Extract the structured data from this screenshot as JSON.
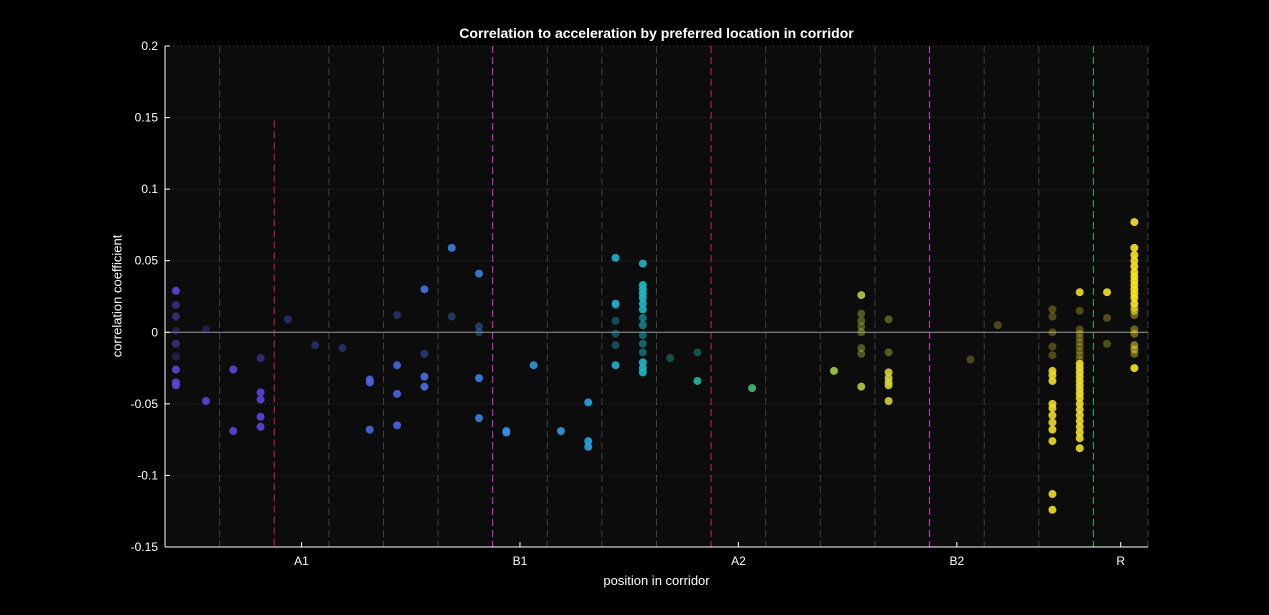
{
  "chart_data": {
    "type": "scatter",
    "title": "Correlation to acceleration by preferred location in corridor",
    "xlabel": "position in corridor",
    "ylabel": "correlation coefficient",
    "ylim": [
      -0.15,
      0.2
    ],
    "yticks": [
      "-0.15",
      "-0.1",
      "-0.05",
      "0",
      "0.05",
      "0.1",
      "0.15",
      "0.2"
    ],
    "ytick_values": [
      -0.15,
      -0.1,
      -0.05,
      0,
      0.05,
      0.1,
      0.15,
      0.2
    ],
    "xlim": [
      0,
      36
    ],
    "xtick_labels": [
      "A1",
      "B1",
      "A2",
      "B2",
      "R"
    ],
    "xtick_positions": [
      5,
      13,
      21,
      29,
      35
    ],
    "grid": "dotted horizontal at y ticks",
    "zero_line": 0,
    "bin_boundaries": [
      2,
      4,
      6,
      8,
      10,
      12,
      14,
      16,
      18,
      20,
      22,
      24,
      26,
      28,
      30,
      32,
      34,
      36
    ],
    "region_boundaries": [
      {
        "x": 4,
        "color": "#c8284a",
        "ymax": 0.148
      },
      {
        "x": 12,
        "color": "#d53ad0"
      },
      {
        "x": 20,
        "color": "#c8284a"
      },
      {
        "x": 28,
        "color": "#d53ad0"
      },
      {
        "x": 34,
        "color": "#2eb834"
      }
    ],
    "colors": {
      "background": "#000000",
      "axes_background": "#0c0c0c",
      "axis": "#ffffff",
      "bin_line": "#404040",
      "grid": "#3a3a3a",
      "zero_line": "#9a9a9a"
    },
    "points": [
      {
        "x": 0.4,
        "y": 0.029,
        "c": "#5a46dc",
        "a": 0.9
      },
      {
        "x": 0.4,
        "y": 0.019,
        "c": "#5a46dc",
        "a": 0.5
      },
      {
        "x": 0.4,
        "y": 0.011,
        "c": "#5a46dc",
        "a": 0.5
      },
      {
        "x": 0.4,
        "y": 0.001,
        "c": "#5a46dc",
        "a": 0.3
      },
      {
        "x": 0.4,
        "y": -0.008,
        "c": "#5a46dc",
        "a": 0.5
      },
      {
        "x": 0.4,
        "y": -0.017,
        "c": "#5a46dc",
        "a": 0.3
      },
      {
        "x": 0.4,
        "y": -0.026,
        "c": "#5a46dc",
        "a": 0.9
      },
      {
        "x": 0.4,
        "y": -0.035,
        "c": "#5a46dc",
        "a": 0.9
      },
      {
        "x": 0.4,
        "y": -0.037,
        "c": "#5a46dc",
        "a": 0.9
      },
      {
        "x": 1.5,
        "y": 0.002,
        "c": "#5a46dc",
        "a": 0.3
      },
      {
        "x": 1.5,
        "y": -0.048,
        "c": "#5a46dc",
        "a": 0.9
      },
      {
        "x": 2.5,
        "y": -0.026,
        "c": "#5a46dc",
        "a": 0.9
      },
      {
        "x": 2.5,
        "y": -0.069,
        "c": "#5a46dc",
        "a": 0.9
      },
      {
        "x": 3.5,
        "y": -0.018,
        "c": "#5a46dc",
        "a": 0.5
      },
      {
        "x": 3.5,
        "y": -0.042,
        "c": "#5a46dc",
        "a": 0.9
      },
      {
        "x": 3.5,
        "y": -0.047,
        "c": "#5a46dc",
        "a": 0.9
      },
      {
        "x": 3.5,
        "y": -0.059,
        "c": "#5a46dc",
        "a": 0.9
      },
      {
        "x": 3.5,
        "y": -0.066,
        "c": "#5a46dc",
        "a": 0.9
      },
      {
        "x": 4.5,
        "y": 0.009,
        "c": "#4a58de",
        "a": 0.4
      },
      {
        "x": 5.5,
        "y": -0.009,
        "c": "#4a58de",
        "a": 0.4
      },
      {
        "x": 6.5,
        "y": -0.011,
        "c": "#4a58de",
        "a": 0.4
      },
      {
        "x": 7.5,
        "y": -0.033,
        "c": "#4a64e0",
        "a": 0.9
      },
      {
        "x": 7.5,
        "y": -0.035,
        "c": "#4a64e0",
        "a": 0.9
      },
      {
        "x": 7.5,
        "y": -0.068,
        "c": "#4a64e0",
        "a": 0.9
      },
      {
        "x": 8.5,
        "y": 0.012,
        "c": "#4a64e0",
        "a": 0.4
      },
      {
        "x": 8.5,
        "y": -0.023,
        "c": "#4a64e0",
        "a": 0.9
      },
      {
        "x": 8.5,
        "y": -0.043,
        "c": "#4a64e0",
        "a": 0.9
      },
      {
        "x": 8.5,
        "y": -0.065,
        "c": "#4a64e0",
        "a": 0.9
      },
      {
        "x": 9.5,
        "y": 0.03,
        "c": "#4a70e2",
        "a": 0.9
      },
      {
        "x": 9.5,
        "y": -0.015,
        "c": "#4a70e2",
        "a": 0.4
      },
      {
        "x": 9.5,
        "y": -0.031,
        "c": "#4a70e2",
        "a": 0.9
      },
      {
        "x": 9.5,
        "y": -0.038,
        "c": "#4a70e2",
        "a": 0.9
      },
      {
        "x": 10.5,
        "y": 0.059,
        "c": "#3a82e2",
        "a": 0.9
      },
      {
        "x": 10.5,
        "y": 0.011,
        "c": "#3a82e2",
        "a": 0.4
      },
      {
        "x": 11.5,
        "y": 0.041,
        "c": "#3a82e2",
        "a": 0.9
      },
      {
        "x": 11.5,
        "y": 0.004,
        "c": "#3a82e2",
        "a": 0.4
      },
      {
        "x": 11.5,
        "y": 0.0,
        "c": "#3a82e2",
        "a": 0.4
      },
      {
        "x": 11.5,
        "y": -0.032,
        "c": "#3a82e2",
        "a": 0.9
      },
      {
        "x": 11.5,
        "y": -0.06,
        "c": "#3a82e2",
        "a": 0.9
      },
      {
        "x": 12.5,
        "y": -0.069,
        "c": "#3a8ee0",
        "a": 0.9
      },
      {
        "x": 12.5,
        "y": -0.07,
        "c": "#3a8ee0",
        "a": 0.9
      },
      {
        "x": 13.5,
        "y": -0.023,
        "c": "#2f9ae0",
        "a": 0.9
      },
      {
        "x": 14.5,
        "y": -0.069,
        "c": "#2f9ae0",
        "a": 0.9
      },
      {
        "x": 15.5,
        "y": -0.049,
        "c": "#2aa4dc",
        "a": 0.9
      },
      {
        "x": 15.5,
        "y": -0.076,
        "c": "#2aa4dc",
        "a": 0.9
      },
      {
        "x": 15.5,
        "y": -0.08,
        "c": "#2aa4dc",
        "a": 0.9
      },
      {
        "x": 16.5,
        "y": 0.052,
        "c": "#22aed2",
        "a": 0.9
      },
      {
        "x": 16.5,
        "y": 0.02,
        "c": "#22aed2",
        "a": 0.9
      },
      {
        "x": 16.5,
        "y": 0.019,
        "c": "#22aed2",
        "a": 0.5
      },
      {
        "x": 16.5,
        "y": 0.008,
        "c": "#22aed2",
        "a": 0.4
      },
      {
        "x": 16.5,
        "y": -0.001,
        "c": "#22aed2",
        "a": 0.4
      },
      {
        "x": 16.5,
        "y": -0.009,
        "c": "#22aed2",
        "a": 0.4
      },
      {
        "x": 16.5,
        "y": -0.023,
        "c": "#22aed2",
        "a": 0.9
      },
      {
        "x": 17.5,
        "y": 0.048,
        "c": "#1eb8c8",
        "a": 0.9
      },
      {
        "x": 17.5,
        "y": 0.033,
        "c": "#1eb8c8",
        "a": 0.9
      },
      {
        "x": 17.5,
        "y": 0.03,
        "c": "#1eb8c8",
        "a": 0.9
      },
      {
        "x": 17.5,
        "y": 0.027,
        "c": "#1eb8c8",
        "a": 0.9
      },
      {
        "x": 17.5,
        "y": 0.024,
        "c": "#1eb8c8",
        "a": 0.9
      },
      {
        "x": 17.5,
        "y": 0.02,
        "c": "#1eb8c8",
        "a": 0.9
      },
      {
        "x": 17.5,
        "y": 0.016,
        "c": "#1eb8c8",
        "a": 0.9
      },
      {
        "x": 17.5,
        "y": 0.01,
        "c": "#1eb8c8",
        "a": 0.6
      },
      {
        "x": 17.5,
        "y": 0.005,
        "c": "#1eb8c8",
        "a": 0.6
      },
      {
        "x": 17.5,
        "y": -0.002,
        "c": "#1eb8c8",
        "a": 0.5
      },
      {
        "x": 17.5,
        "y": -0.008,
        "c": "#1eb8c8",
        "a": 0.5
      },
      {
        "x": 17.5,
        "y": -0.014,
        "c": "#1eb8c8",
        "a": 0.5
      },
      {
        "x": 17.5,
        "y": -0.021,
        "c": "#1eb8c8",
        "a": 0.9
      },
      {
        "x": 17.5,
        "y": -0.025,
        "c": "#1eb8c8",
        "a": 0.9
      },
      {
        "x": 17.5,
        "y": -0.028,
        "c": "#1eb8c8",
        "a": 0.9
      },
      {
        "x": 18.5,
        "y": -0.018,
        "c": "#24b8a8",
        "a": 0.4
      },
      {
        "x": 19.5,
        "y": -0.014,
        "c": "#24b8a0",
        "a": 0.4
      },
      {
        "x": 19.5,
        "y": -0.034,
        "c": "#24b8a0",
        "a": 0.9
      },
      {
        "x": 21.5,
        "y": -0.039,
        "c": "#3cbf7c",
        "a": 0.9
      },
      {
        "x": 24.5,
        "y": -0.027,
        "c": "#a0cc48",
        "a": 0.9
      },
      {
        "x": 25.5,
        "y": 0.026,
        "c": "#b4cc40",
        "a": 0.9
      },
      {
        "x": 25.5,
        "y": 0.013,
        "c": "#b4cc40",
        "a": 0.4
      },
      {
        "x": 25.5,
        "y": 0.008,
        "c": "#b4cc40",
        "a": 0.4
      },
      {
        "x": 25.5,
        "y": 0.004,
        "c": "#b4cc40",
        "a": 0.4
      },
      {
        "x": 25.5,
        "y": 0.0,
        "c": "#b4cc40",
        "a": 0.4
      },
      {
        "x": 25.5,
        "y": -0.011,
        "c": "#b4cc40",
        "a": 0.4
      },
      {
        "x": 25.5,
        "y": -0.015,
        "c": "#b4cc40",
        "a": 0.4
      },
      {
        "x": 25.5,
        "y": -0.038,
        "c": "#b4cc40",
        "a": 0.9
      },
      {
        "x": 26.5,
        "y": 0.009,
        "c": "#c8d23e",
        "a": 0.4
      },
      {
        "x": 26.5,
        "y": -0.014,
        "c": "#c8d23e",
        "a": 0.4
      },
      {
        "x": 26.5,
        "y": -0.028,
        "c": "#d2d23a",
        "a": 0.9
      },
      {
        "x": 26.5,
        "y": -0.032,
        "c": "#d2d23a",
        "a": 0.9
      },
      {
        "x": 26.5,
        "y": -0.035,
        "c": "#d2d23a",
        "a": 0.9
      },
      {
        "x": 26.5,
        "y": -0.037,
        "c": "#d2d23a",
        "a": 0.9
      },
      {
        "x": 26.5,
        "y": -0.048,
        "c": "#d2d23a",
        "a": 0.9
      },
      {
        "x": 29.5,
        "y": -0.019,
        "c": "#e2d23a",
        "a": 0.3
      },
      {
        "x": 30.5,
        "y": 0.005,
        "c": "#e2d23a",
        "a": 0.3
      },
      {
        "x": 32.5,
        "y": 0.016,
        "c": "#f0dc2c",
        "a": 0.3
      },
      {
        "x": 32.5,
        "y": 0.011,
        "c": "#f0dc2c",
        "a": 0.3
      },
      {
        "x": 32.5,
        "y": 0.0,
        "c": "#f0dc2c",
        "a": 0.3
      },
      {
        "x": 32.5,
        "y": -0.01,
        "c": "#f0dc2c",
        "a": 0.3
      },
      {
        "x": 32.5,
        "y": -0.016,
        "c": "#f0dc2c",
        "a": 0.3
      },
      {
        "x": 32.5,
        "y": -0.027,
        "c": "#f0dc2c",
        "a": 0.9
      },
      {
        "x": 32.5,
        "y": -0.03,
        "c": "#f0dc2c",
        "a": 0.9
      },
      {
        "x": 32.5,
        "y": -0.034,
        "c": "#f0dc2c",
        "a": 0.9
      },
      {
        "x": 32.5,
        "y": -0.05,
        "c": "#f0dc2c",
        "a": 0.9
      },
      {
        "x": 32.5,
        "y": -0.053,
        "c": "#f0dc2c",
        "a": 0.9
      },
      {
        "x": 32.5,
        "y": -0.058,
        "c": "#f0dc2c",
        "a": 0.9
      },
      {
        "x": 32.5,
        "y": -0.063,
        "c": "#f0dc2c",
        "a": 0.9
      },
      {
        "x": 32.5,
        "y": -0.068,
        "c": "#f0dc2c",
        "a": 0.9
      },
      {
        "x": 32.5,
        "y": -0.076,
        "c": "#f0dc2c",
        "a": 0.9
      },
      {
        "x": 32.5,
        "y": -0.113,
        "c": "#f0dc2c",
        "a": 0.9
      },
      {
        "x": 32.5,
        "y": -0.124,
        "c": "#f0dc2c",
        "a": 0.9
      },
      {
        "x": 33.5,
        "y": 0.028,
        "c": "#f0dc2c",
        "a": 0.9
      },
      {
        "x": 33.5,
        "y": 0.015,
        "c": "#f0dc2c",
        "a": 0.3
      },
      {
        "x": 33.5,
        "y": 0.002,
        "c": "#f0dc2c",
        "a": 0.3
      },
      {
        "x": 33.5,
        "y": -0.001,
        "c": "#f0dc2c",
        "a": 0.3
      },
      {
        "x": 33.5,
        "y": -0.004,
        "c": "#f0dc2c",
        "a": 0.3
      },
      {
        "x": 33.5,
        "y": -0.007,
        "c": "#f0dc2c",
        "a": 0.3
      },
      {
        "x": 33.5,
        "y": -0.01,
        "c": "#f0dc2c",
        "a": 0.3
      },
      {
        "x": 33.5,
        "y": -0.013,
        "c": "#f0dc2c",
        "a": 0.3
      },
      {
        "x": 33.5,
        "y": -0.016,
        "c": "#f0dc2c",
        "a": 0.3
      },
      {
        "x": 33.5,
        "y": -0.019,
        "c": "#f0dc2c",
        "a": 0.3
      },
      {
        "x": 33.5,
        "y": -0.022,
        "c": "#f0dc2c",
        "a": 0.9
      },
      {
        "x": 33.5,
        "y": -0.025,
        "c": "#f0dc2c",
        "a": 0.9
      },
      {
        "x": 33.5,
        "y": -0.028,
        "c": "#f0dc2c",
        "a": 0.9
      },
      {
        "x": 33.5,
        "y": -0.031,
        "c": "#f0dc2c",
        "a": 0.9
      },
      {
        "x": 33.5,
        "y": -0.034,
        "c": "#f0dc2c",
        "a": 0.9
      },
      {
        "x": 33.5,
        "y": -0.037,
        "c": "#f0dc2c",
        "a": 0.9
      },
      {
        "x": 33.5,
        "y": -0.04,
        "c": "#f0dc2c",
        "a": 0.9
      },
      {
        "x": 33.5,
        "y": -0.043,
        "c": "#f0dc2c",
        "a": 0.9
      },
      {
        "x": 33.5,
        "y": -0.046,
        "c": "#f0dc2c",
        "a": 0.9
      },
      {
        "x": 33.5,
        "y": -0.05,
        "c": "#f0dc2c",
        "a": 0.9
      },
      {
        "x": 33.5,
        "y": -0.054,
        "c": "#f0dc2c",
        "a": 0.9
      },
      {
        "x": 33.5,
        "y": -0.058,
        "c": "#f0dc2c",
        "a": 0.9
      },
      {
        "x": 33.5,
        "y": -0.062,
        "c": "#f0dc2c",
        "a": 0.9
      },
      {
        "x": 33.5,
        "y": -0.066,
        "c": "#f0dc2c",
        "a": 0.9
      },
      {
        "x": 33.5,
        "y": -0.07,
        "c": "#f0dc2c",
        "a": 0.9
      },
      {
        "x": 33.5,
        "y": -0.074,
        "c": "#f0dc2c",
        "a": 0.9
      },
      {
        "x": 33.5,
        "y": -0.081,
        "c": "#f0dc2c",
        "a": 0.9
      },
      {
        "x": 34.5,
        "y": 0.028,
        "c": "#f5e02a",
        "a": 0.9
      },
      {
        "x": 34.5,
        "y": 0.01,
        "c": "#f5e02a",
        "a": 0.3
      },
      {
        "x": 34.5,
        "y": -0.008,
        "c": "#f5e02a",
        "a": 0.3
      },
      {
        "x": 35.5,
        "y": 0.077,
        "c": "#f8e425",
        "a": 0.9
      },
      {
        "x": 35.5,
        "y": 0.059,
        "c": "#f8e425",
        "a": 0.9
      },
      {
        "x": 35.5,
        "y": 0.054,
        "c": "#f8e425",
        "a": 0.9
      },
      {
        "x": 35.5,
        "y": 0.05,
        "c": "#f8e425",
        "a": 0.9
      },
      {
        "x": 35.5,
        "y": 0.046,
        "c": "#f8e425",
        "a": 0.9
      },
      {
        "x": 35.5,
        "y": 0.042,
        "c": "#f8e425",
        "a": 0.9
      },
      {
        "x": 35.5,
        "y": 0.039,
        "c": "#f8e425",
        "a": 0.9
      },
      {
        "x": 35.5,
        "y": 0.036,
        "c": "#f8e425",
        "a": 0.9
      },
      {
        "x": 35.5,
        "y": 0.033,
        "c": "#f8e425",
        "a": 0.9
      },
      {
        "x": 35.5,
        "y": 0.03,
        "c": "#f8e425",
        "a": 0.9
      },
      {
        "x": 35.5,
        "y": 0.027,
        "c": "#f8e425",
        "a": 0.9
      },
      {
        "x": 35.5,
        "y": 0.024,
        "c": "#f8e425",
        "a": 0.9
      },
      {
        "x": 35.5,
        "y": 0.02,
        "c": "#f8e425",
        "a": 0.9
      },
      {
        "x": 35.5,
        "y": 0.017,
        "c": "#f8e425",
        "a": 0.6
      },
      {
        "x": 35.5,
        "y": 0.015,
        "c": "#f8e425",
        "a": 0.6
      },
      {
        "x": 35.5,
        "y": 0.012,
        "c": "#f8e425",
        "a": 0.4
      },
      {
        "x": 35.5,
        "y": 0.002,
        "c": "#f8e425",
        "a": 0.4
      },
      {
        "x": 35.5,
        "y": -0.001,
        "c": "#f8e425",
        "a": 0.4
      },
      {
        "x": 35.5,
        "y": -0.009,
        "c": "#f8e425",
        "a": 0.5
      },
      {
        "x": 35.5,
        "y": -0.012,
        "c": "#f8e425",
        "a": 0.5
      },
      {
        "x": 35.5,
        "y": -0.015,
        "c": "#f8e425",
        "a": 0.4
      },
      {
        "x": 35.5,
        "y": -0.025,
        "c": "#f8e425",
        "a": 0.9
      }
    ]
  }
}
